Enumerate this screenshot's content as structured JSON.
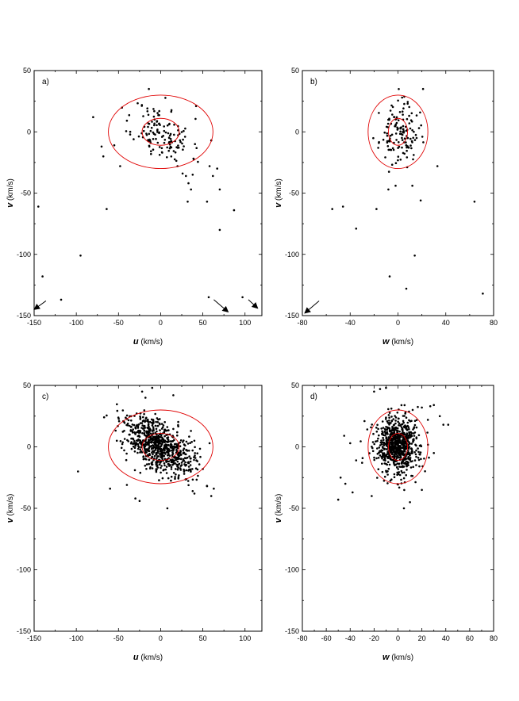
{
  "chart_data": [
    {
      "type": "scatter",
      "panel_label": "a)",
      "xlabel_var": "u",
      "xlabel_unit": " (km/s)",
      "ylabel_var": "v",
      "ylabel_unit": " (km/s)",
      "xlim": [
        -150,
        120
      ],
      "ylim": [
        -150,
        50
      ],
      "xticks": [
        -150,
        -100,
        -50,
        0,
        50,
        100
      ],
      "yticks": [
        -150,
        -100,
        -50,
        0,
        50
      ],
      "ellipses": [
        {
          "cx": 0,
          "cy": 0,
          "rx": 62,
          "ry": 30,
          "color": "#e00000"
        },
        {
          "cx": 0,
          "cy": 0,
          "rx": 22,
          "ry": 11,
          "color": "#e00000"
        }
      ],
      "arrows": [
        {
          "from": [
            -136,
            -138
          ],
          "to": [
            -150,
            -145
          ]
        },
        {
          "from": [
            63,
            -137
          ],
          "to": [
            80,
            -147
          ]
        },
        {
          "from": [
            104,
            -137
          ],
          "to": [
            115,
            -144
          ]
        }
      ],
      "cluster": {
        "count": 135,
        "mean": [
          2,
          -2
        ],
        "std": [
          17,
          12
        ],
        "corr": -0.35,
        "seed": 11
      },
      "points": [
        [
          -145,
          -61
        ],
        [
          -140,
          -118
        ],
        [
          -118,
          -137
        ],
        [
          -95,
          -101
        ],
        [
          -64,
          -63
        ],
        [
          -80,
          12
        ],
        [
          -70,
          -12
        ],
        [
          -68,
          -20
        ],
        [
          -55,
          -11
        ],
        [
          -48,
          -28
        ],
        [
          -14,
          35
        ],
        [
          42,
          21
        ],
        [
          20,
          -28
        ],
        [
          26,
          -34
        ],
        [
          30,
          -36
        ],
        [
          32,
          -57
        ],
        [
          33,
          -42
        ],
        [
          36,
          -47
        ],
        [
          38,
          -35
        ],
        [
          55,
          -57
        ],
        [
          58,
          -28
        ],
        [
          60,
          -7
        ],
        [
          62,
          -36
        ],
        [
          67,
          -30
        ],
        [
          70,
          -47
        ],
        [
          70,
          -80
        ],
        [
          87,
          -64
        ],
        [
          57,
          -135
        ],
        [
          97,
          -135
        ]
      ]
    },
    {
      "type": "scatter",
      "panel_label": "b)",
      "xlabel_var": "w",
      "xlabel_unit": " (km/s)",
      "ylabel_var": "v",
      "ylabel_unit": " (km/s)",
      "xlim": [
        -80,
        80
      ],
      "ylim": [
        -150,
        50
      ],
      "xticks": [
        -80,
        -40,
        0,
        40,
        80
      ],
      "yticks": [
        -150,
        -100,
        -50,
        0,
        50
      ],
      "ellipses": [
        {
          "cx": 0,
          "cy": 0,
          "rx": 25,
          "ry": 30,
          "color": "#e00000"
        },
        {
          "cx": 0,
          "cy": 0,
          "rx": 8,
          "ry": 11,
          "color": "#e00000"
        }
      ],
      "arrows": [
        {
          "from": [
            -66,
            -138
          ],
          "to": [
            -78,
            -148
          ]
        }
      ],
      "cluster": {
        "count": 135,
        "mean": [
          1,
          -2
        ],
        "std": [
          8,
          12
        ],
        "corr": 0.0,
        "seed": 23
      },
      "points": [
        [
          -55,
          -63
        ],
        [
          -46,
          -61
        ],
        [
          -35,
          -79
        ],
        [
          -18,
          -63
        ],
        [
          -16,
          -9
        ],
        [
          -8,
          -47
        ],
        [
          -7,
          -118
        ],
        [
          7,
          -128
        ],
        [
          14,
          -101
        ],
        [
          19,
          -56
        ],
        [
          21,
          35
        ],
        [
          33,
          -28
        ],
        [
          64,
          -57
        ],
        [
          71,
          -132
        ],
        [
          12,
          -44
        ],
        [
          -2,
          -44
        ]
      ]
    },
    {
      "type": "scatter",
      "panel_label": "c)",
      "xlabel_var": "u",
      "xlabel_unit": " (km/s)",
      "ylabel_var": "v",
      "ylabel_unit": " (km/s)",
      "xlim": [
        -150,
        120
      ],
      "ylim": [
        -150,
        50
      ],
      "xticks": [
        -150,
        -100,
        -50,
        0,
        50,
        100
      ],
      "yticks": [
        -150,
        -100,
        -50,
        0,
        50
      ],
      "ellipses": [
        {
          "cx": 0,
          "cy": 0,
          "rx": 62,
          "ry": 30,
          "color": "#e00000"
        },
        {
          "cx": 0,
          "cy": 0,
          "rx": 22,
          "ry": 11,
          "color": "#e00000"
        }
      ],
      "arrows": [],
      "cluster": {
        "count": 760,
        "mean": [
          -2,
          1
        ],
        "std": [
          20,
          12
        ],
        "corr": -0.55,
        "seed": 37
      },
      "points": [
        [
          -98,
          -20
        ],
        [
          -60,
          -34
        ],
        [
          -52,
          5
        ],
        [
          -40,
          -31
        ],
        [
          -30,
          -42
        ],
        [
          -25,
          -44
        ],
        [
          -22,
          45
        ],
        [
          -18,
          40
        ],
        [
          -10,
          48
        ],
        [
          8,
          -50
        ],
        [
          15,
          42
        ],
        [
          38,
          -36
        ],
        [
          40,
          -38
        ],
        [
          55,
          -32
        ],
        [
          58,
          3
        ],
        [
          60,
          -40
        ],
        [
          63,
          -34
        ],
        [
          50,
          -18
        ]
      ]
    },
    {
      "type": "scatter",
      "panel_label": "d)",
      "xlabel_var": "w",
      "xlabel_unit": " (km/s)",
      "ylabel_var": "v",
      "ylabel_unit": " (km/s)",
      "xlim": [
        -80,
        80
      ],
      "ylim": [
        -150,
        50
      ],
      "xticks": [
        -80,
        -60,
        -40,
        -20,
        0,
        20,
        40,
        60,
        80
      ],
      "yticks": [
        -150,
        -100,
        -50,
        0,
        50
      ],
      "ellipses": [
        {
          "cx": 0,
          "cy": 0,
          "rx": 25,
          "ry": 30,
          "color": "#e00000"
        },
        {
          "cx": 0,
          "cy": 0,
          "rx": 8,
          "ry": 11,
          "color": "#e00000"
        }
      ],
      "arrows": [],
      "cluster": {
        "count": 760,
        "mean": [
          0,
          1
        ],
        "std": [
          9,
          12
        ],
        "corr": 0.0,
        "seed": 53
      },
      "points": [
        [
          -50,
          -43
        ],
        [
          -45,
          9
        ],
        [
          -48,
          -25
        ],
        [
          -44,
          -30
        ],
        [
          -40,
          3
        ],
        [
          -38,
          -37
        ],
        [
          -35,
          -11
        ],
        [
          -30,
          -13
        ],
        [
          -28,
          21
        ],
        [
          -22,
          -40
        ],
        [
          -20,
          45
        ],
        [
          -15,
          47
        ],
        [
          20,
          32
        ],
        [
          25,
          22
        ],
        [
          27,
          33
        ],
        [
          30,
          34
        ],
        [
          35,
          25
        ],
        [
          38,
          18
        ],
        [
          42,
          18
        ],
        [
          30,
          -5
        ],
        [
          20,
          -35
        ],
        [
          5,
          -50
        ],
        [
          10,
          -45
        ],
        [
          -10,
          48
        ]
      ]
    }
  ]
}
